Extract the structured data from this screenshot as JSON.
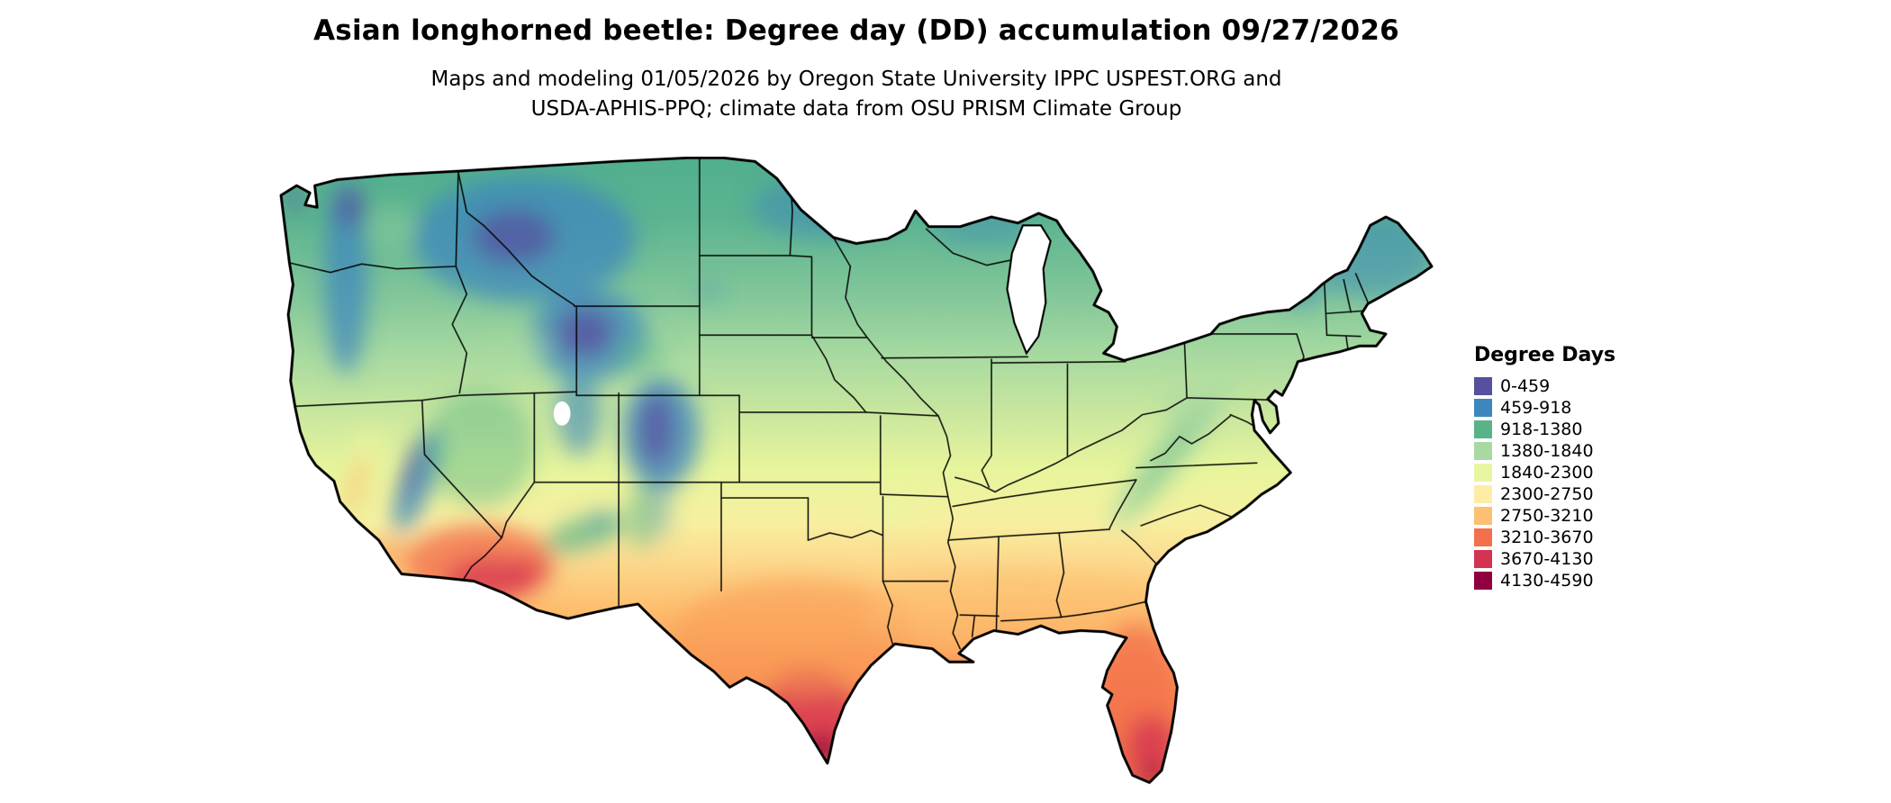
{
  "header": {
    "title": "Asian longhorned beetle: Degree day (DD) accumulation 09/27/2026",
    "subtitle_line1": "Maps and modeling 01/05/2026 by Oregon State University IPPC USPEST.ORG and",
    "subtitle_line2": "USDA-APHIS-PPQ; climate data from OSU PRISM Climate Group"
  },
  "legend": {
    "title": "Degree Days",
    "items": [
      {
        "label": "0-459",
        "color": "#574fa0"
      },
      {
        "label": "459-918",
        "color": "#3d87bd"
      },
      {
        "label": "918-1380",
        "color": "#59b389"
      },
      {
        "label": "1380-1840",
        "color": "#a8d9a2"
      },
      {
        "label": "1840-2300",
        "color": "#e9f6a1"
      },
      {
        "label": "2300-2750",
        "color": "#feeda6"
      },
      {
        "label": "2750-3210",
        "color": "#fdbf71"
      },
      {
        "label": "3210-3670",
        "color": "#f3704c"
      },
      {
        "label": "3670-4130",
        "color": "#d53352"
      },
      {
        "label": "4130-4590",
        "color": "#91003e"
      }
    ]
  }
}
